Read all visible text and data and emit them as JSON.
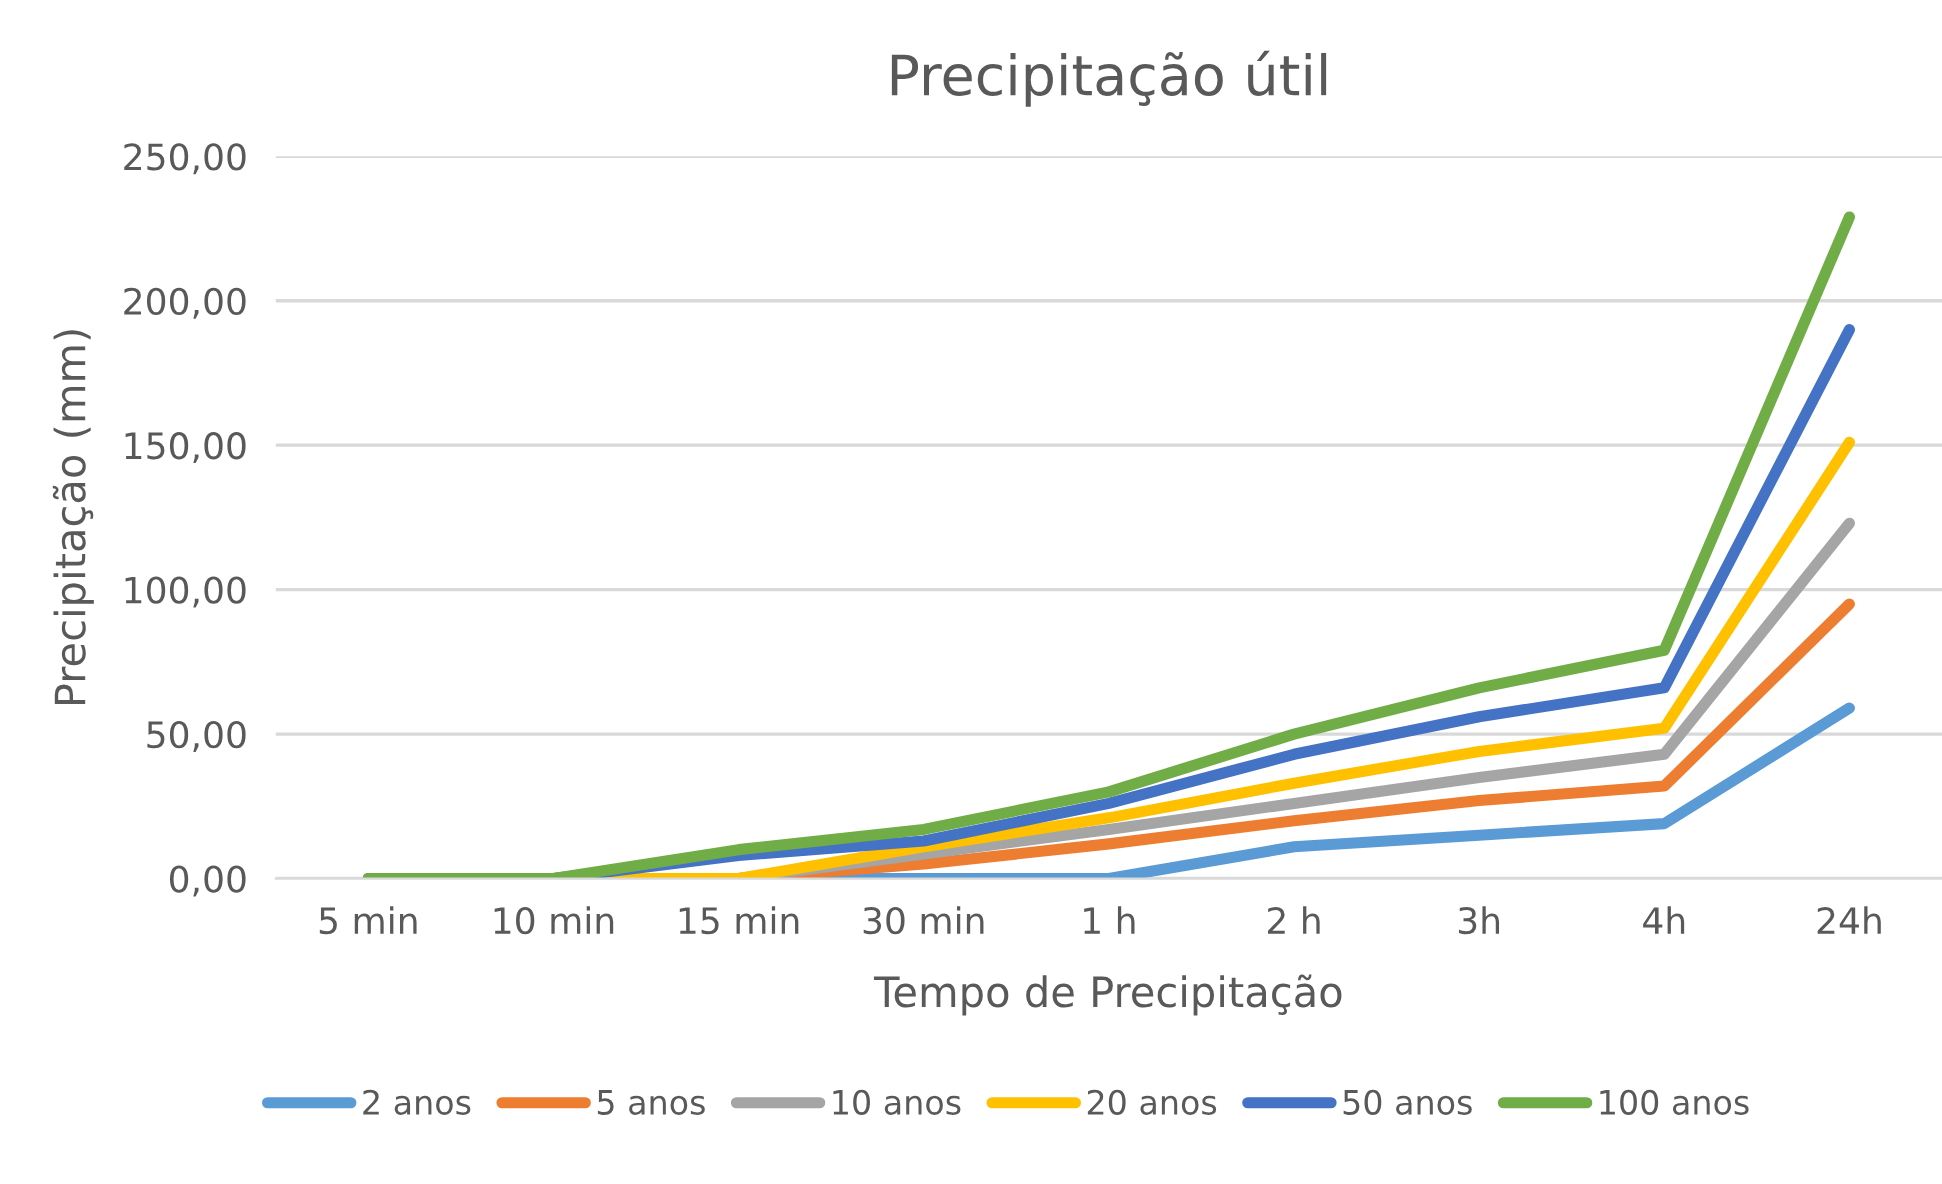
{
  "chart_data": {
    "type": "line",
    "title": "Precipitação útil",
    "xlabel": "Tempo de Precipitação",
    "ylabel": "Precipitação (mm)",
    "categories": [
      "5 min",
      "10 min",
      "15 min",
      "30 min",
      "1 h",
      "2 h",
      "3h",
      "4h",
      "24h"
    ],
    "ylim": [
      0,
      250
    ],
    "yticks": [
      {
        "value": 0,
        "label": "0,00"
      },
      {
        "value": 50,
        "label": "50,00"
      },
      {
        "value": 100,
        "label": "100,00"
      },
      {
        "value": 150,
        "label": "150,00"
      },
      {
        "value": 200,
        "label": "200,00"
      },
      {
        "value": 250,
        "label": "250,00"
      }
    ],
    "grid": "y",
    "legend": "bottom",
    "marker": "none",
    "line_style": "solid",
    "series": [
      {
        "name": "2 anos",
        "color": "#5b9bd5",
        "values": [
          0,
          0,
          0,
          0,
          0,
          11,
          15,
          19,
          59
        ]
      },
      {
        "name": "5 anos",
        "color": "#ed7d31",
        "values": [
          0,
          0,
          0,
          5,
          12,
          20,
          27,
          32,
          95
        ]
      },
      {
        "name": "10 anos",
        "color": "#a5a5a5",
        "values": [
          0,
          0,
          0,
          8.5,
          17,
          26,
          35,
          43,
          123
        ]
      },
      {
        "name": "20 anos",
        "color": "#ffc000",
        "values": [
          0,
          0,
          0,
          11,
          21,
          33,
          44,
          52,
          151
        ]
      },
      {
        "name": "50 anos",
        "color": "#4472c4",
        "values": [
          0,
          0,
          8,
          13,
          26,
          43,
          56,
          66,
          190
        ]
      },
      {
        "name": "100 anos",
        "color": "#70ad47",
        "values": [
          0,
          0,
          10,
          17,
          30,
          50,
          66,
          79,
          229
        ]
      }
    ]
  }
}
